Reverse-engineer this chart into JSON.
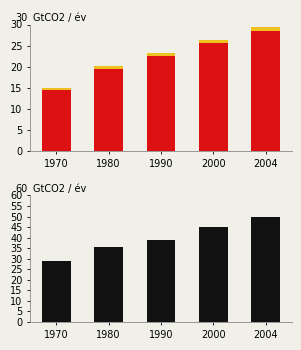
{
  "categories": [
    "1970",
    "1980",
    "1990",
    "2000",
    "2004"
  ],
  "top_chart": {
    "ylim": [
      0,
      30
    ],
    "yticks": [
      0,
      5,
      10,
      15,
      20,
      25,
      30
    ],
    "red_values": [
      14.5,
      19.5,
      22.5,
      25.5,
      28.5
    ],
    "yellow_values": [
      0.5,
      0.7,
      0.7,
      0.8,
      0.8
    ],
    "bar_color_red": "#dd1111",
    "bar_color_yellow": "#f0c020",
    "ylabel_num": "30",
    "ylabel_text": "GtCO2 / év"
  },
  "bottom_chart": {
    "ylim": [
      0,
      60
    ],
    "yticks": [
      0,
      5,
      10,
      15,
      20,
      25,
      30,
      35,
      40,
      45,
      50,
      55,
      60
    ],
    "values": [
      29,
      35.5,
      39,
      45,
      50
    ],
    "bar_color": "#111111",
    "ylabel_num": "60",
    "ylabel_text": "GtCO2 / év"
  },
  "tick_fontsize": 7,
  "label_fontsize": 7,
  "bar_width": 0.55,
  "bg_color": "#f0efe8"
}
